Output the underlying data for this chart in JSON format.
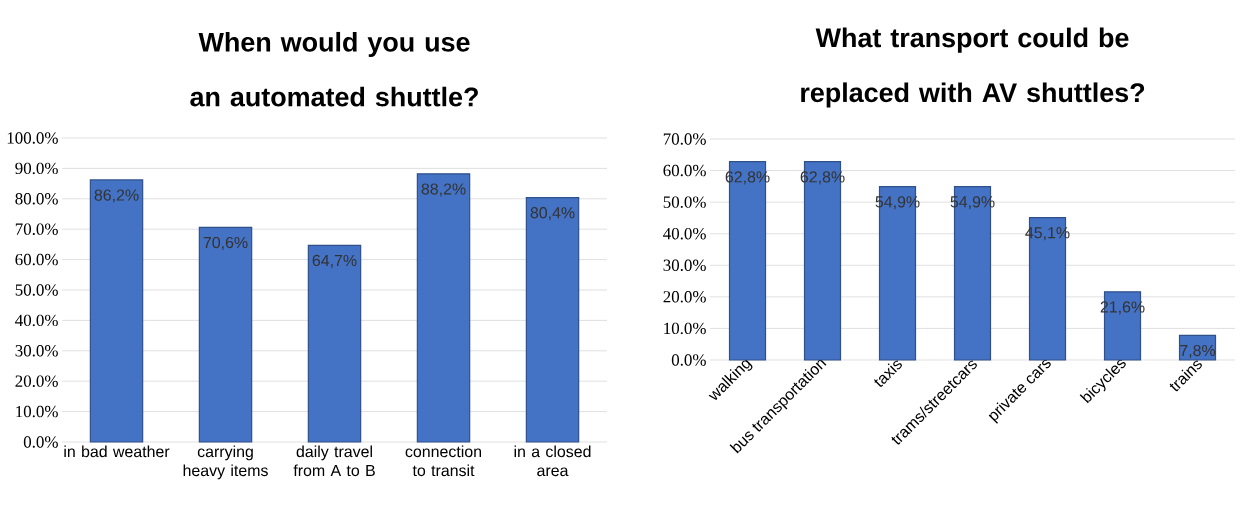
{
  "chart_data": [
    {
      "type": "bar",
      "title": "When would you use an automated shuttle?",
      "categories": [
        "in bad weather",
        "carrying heavy items",
        "daily travel from A to B",
        "connection to transit",
        "in a closed area"
      ],
      "values": [
        86.2,
        70.6,
        64.7,
        88.2,
        80.4
      ],
      "value_labels": [
        "86,2%",
        "70,6%",
        "64,7%",
        "88,2%",
        "80,4%"
      ],
      "color": "#4472c4",
      "ylim": [
        0,
        100
      ],
      "yticks": [
        {
          "value": 0,
          "label": "0.0%"
        },
        {
          "value": 10,
          "label": "10.0%"
        },
        {
          "value": 20,
          "label": "20.0%"
        },
        {
          "value": 30,
          "label": "30.0%"
        },
        {
          "value": 40,
          "label": "40.0%"
        },
        {
          "value": 50,
          "label": "50.0%"
        },
        {
          "value": 60,
          "label": "60.0%"
        },
        {
          "value": 70,
          "label": "70.0%"
        },
        {
          "value": 80,
          "label": "80.0%"
        },
        {
          "value": 90,
          "label": "90.0%"
        },
        {
          "value": 100,
          "label": "100.0%"
        }
      ],
      "grid": "y"
    },
    {
      "type": "bar",
      "title": "What transport could be replaced with AV shuttles?",
      "categories": [
        "walking",
        "bus transportation",
        "taxis",
        "trams/streetcars",
        "private cars",
        "bicycles",
        "trains"
      ],
      "values": [
        62.8,
        62.8,
        54.9,
        54.9,
        45.1,
        21.6,
        7.8
      ],
      "value_labels": [
        "62,8%",
        "62,8%",
        "54,9%",
        "54,9%",
        "45,1%",
        "21,6%",
        "7,8%"
      ],
      "color": "#4472c4",
      "ylim": [
        0,
        70
      ],
      "yticks": [
        {
          "value": 0,
          "label": "0.0%"
        },
        {
          "value": 10,
          "label": "10.0%"
        },
        {
          "value": 20,
          "label": "20.0%"
        },
        {
          "value": 30,
          "label": "30.0%"
        },
        {
          "value": 40,
          "label": "40.0%"
        },
        {
          "value": 50,
          "label": "50.0%"
        },
        {
          "value": 60,
          "label": "60.0%"
        },
        {
          "value": 70,
          "label": "70.0%"
        }
      ],
      "grid": "y"
    }
  ]
}
